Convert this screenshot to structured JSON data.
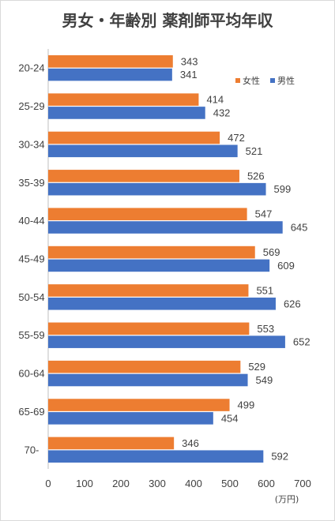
{
  "chart_data": {
    "type": "bar",
    "orientation": "horizontal",
    "title": "男女・年齢別 薬剤師平均年収",
    "categories": [
      "20-24",
      "25-29",
      "30-34",
      "35-39",
      "40-44",
      "45-49",
      "50-54",
      "55-59",
      "60-64",
      "65-69",
      "70-"
    ],
    "series": [
      {
        "name": "女性",
        "color": "#ED7D31",
        "values": [
          343,
          414,
          472,
          526,
          547,
          569,
          551,
          553,
          529,
          499,
          346
        ]
      },
      {
        "name": "男性",
        "color": "#4472C4",
        "values": [
          341,
          432,
          521,
          599,
          645,
          609,
          626,
          652,
          549,
          454,
          592
        ]
      }
    ],
    "xlim": [
      0,
      700
    ],
    "xticks": [
      0,
      100,
      200,
      300,
      400,
      500,
      600,
      700
    ],
    "unit": "(万円)",
    "legend_position": "top-right",
    "grid": false
  }
}
